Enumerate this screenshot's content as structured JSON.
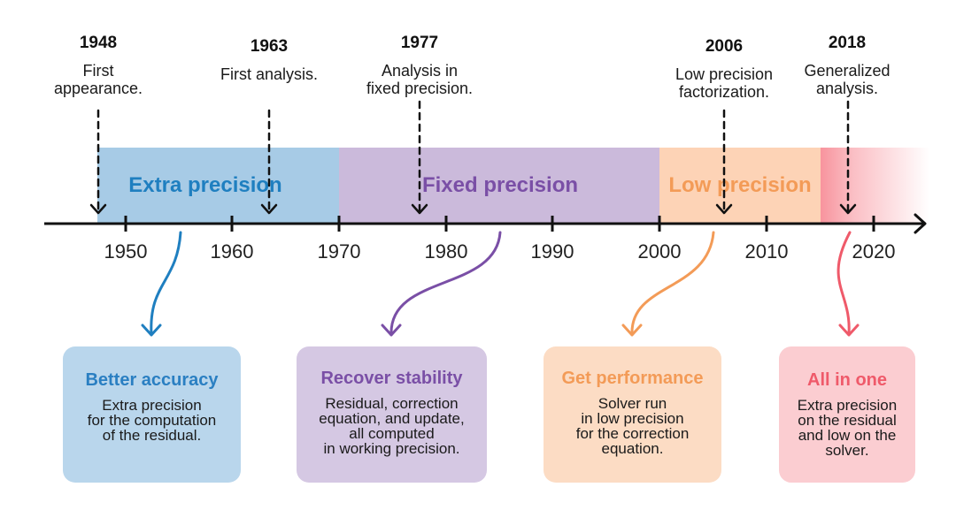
{
  "events": [
    {
      "year": "1948",
      "desc": "First\nappearance."
    },
    {
      "year": "1963",
      "desc": "First analysis."
    },
    {
      "year": "1977",
      "desc": "Analysis in\nfixed precision."
    },
    {
      "year": "2006",
      "desc": "Low precision\nfactorization."
    },
    {
      "year": "2018",
      "desc": "Generalized\nanalysis."
    }
  ],
  "eras": [
    {
      "label": "Extra precision",
      "color": "#1f7fc0",
      "fill": "#a7cbe6"
    },
    {
      "label": "Fixed precision",
      "color": "#7a4fa6",
      "fill": "#cbbadb"
    },
    {
      "label": "Low precision",
      "color": "#f39b57",
      "fill": "#fdd3b6"
    }
  ],
  "axis_ticks": [
    "1950",
    "1960",
    "1970",
    "1980",
    "1990",
    "2000",
    "2010",
    "2020"
  ],
  "cards": [
    {
      "title": "Better accuracy",
      "body": "Extra precision\nfor the computation\nof the residual.",
      "color": "#2a7fc2",
      "fill": "#b9d6ec"
    },
    {
      "title": "Recover stability",
      "body": "Residual, correction\nequation, and update,\nall computed\nin working precision.",
      "color": "#7a4fa6",
      "fill": "#d5c8e3"
    },
    {
      "title": "Get performance",
      "body": "Solver run\nin low precision\nfor the correction\nequation.",
      "color": "#f39b57",
      "fill": "#fcdcc4"
    },
    {
      "title": "All in one",
      "body": "Extra precision\non the residual\nand low on the\nsolver.",
      "color": "#ef5a6a",
      "fill": "#fbcdd1"
    }
  ],
  "colors": {
    "axis": "#111111",
    "last_era": "#f5707d"
  }
}
